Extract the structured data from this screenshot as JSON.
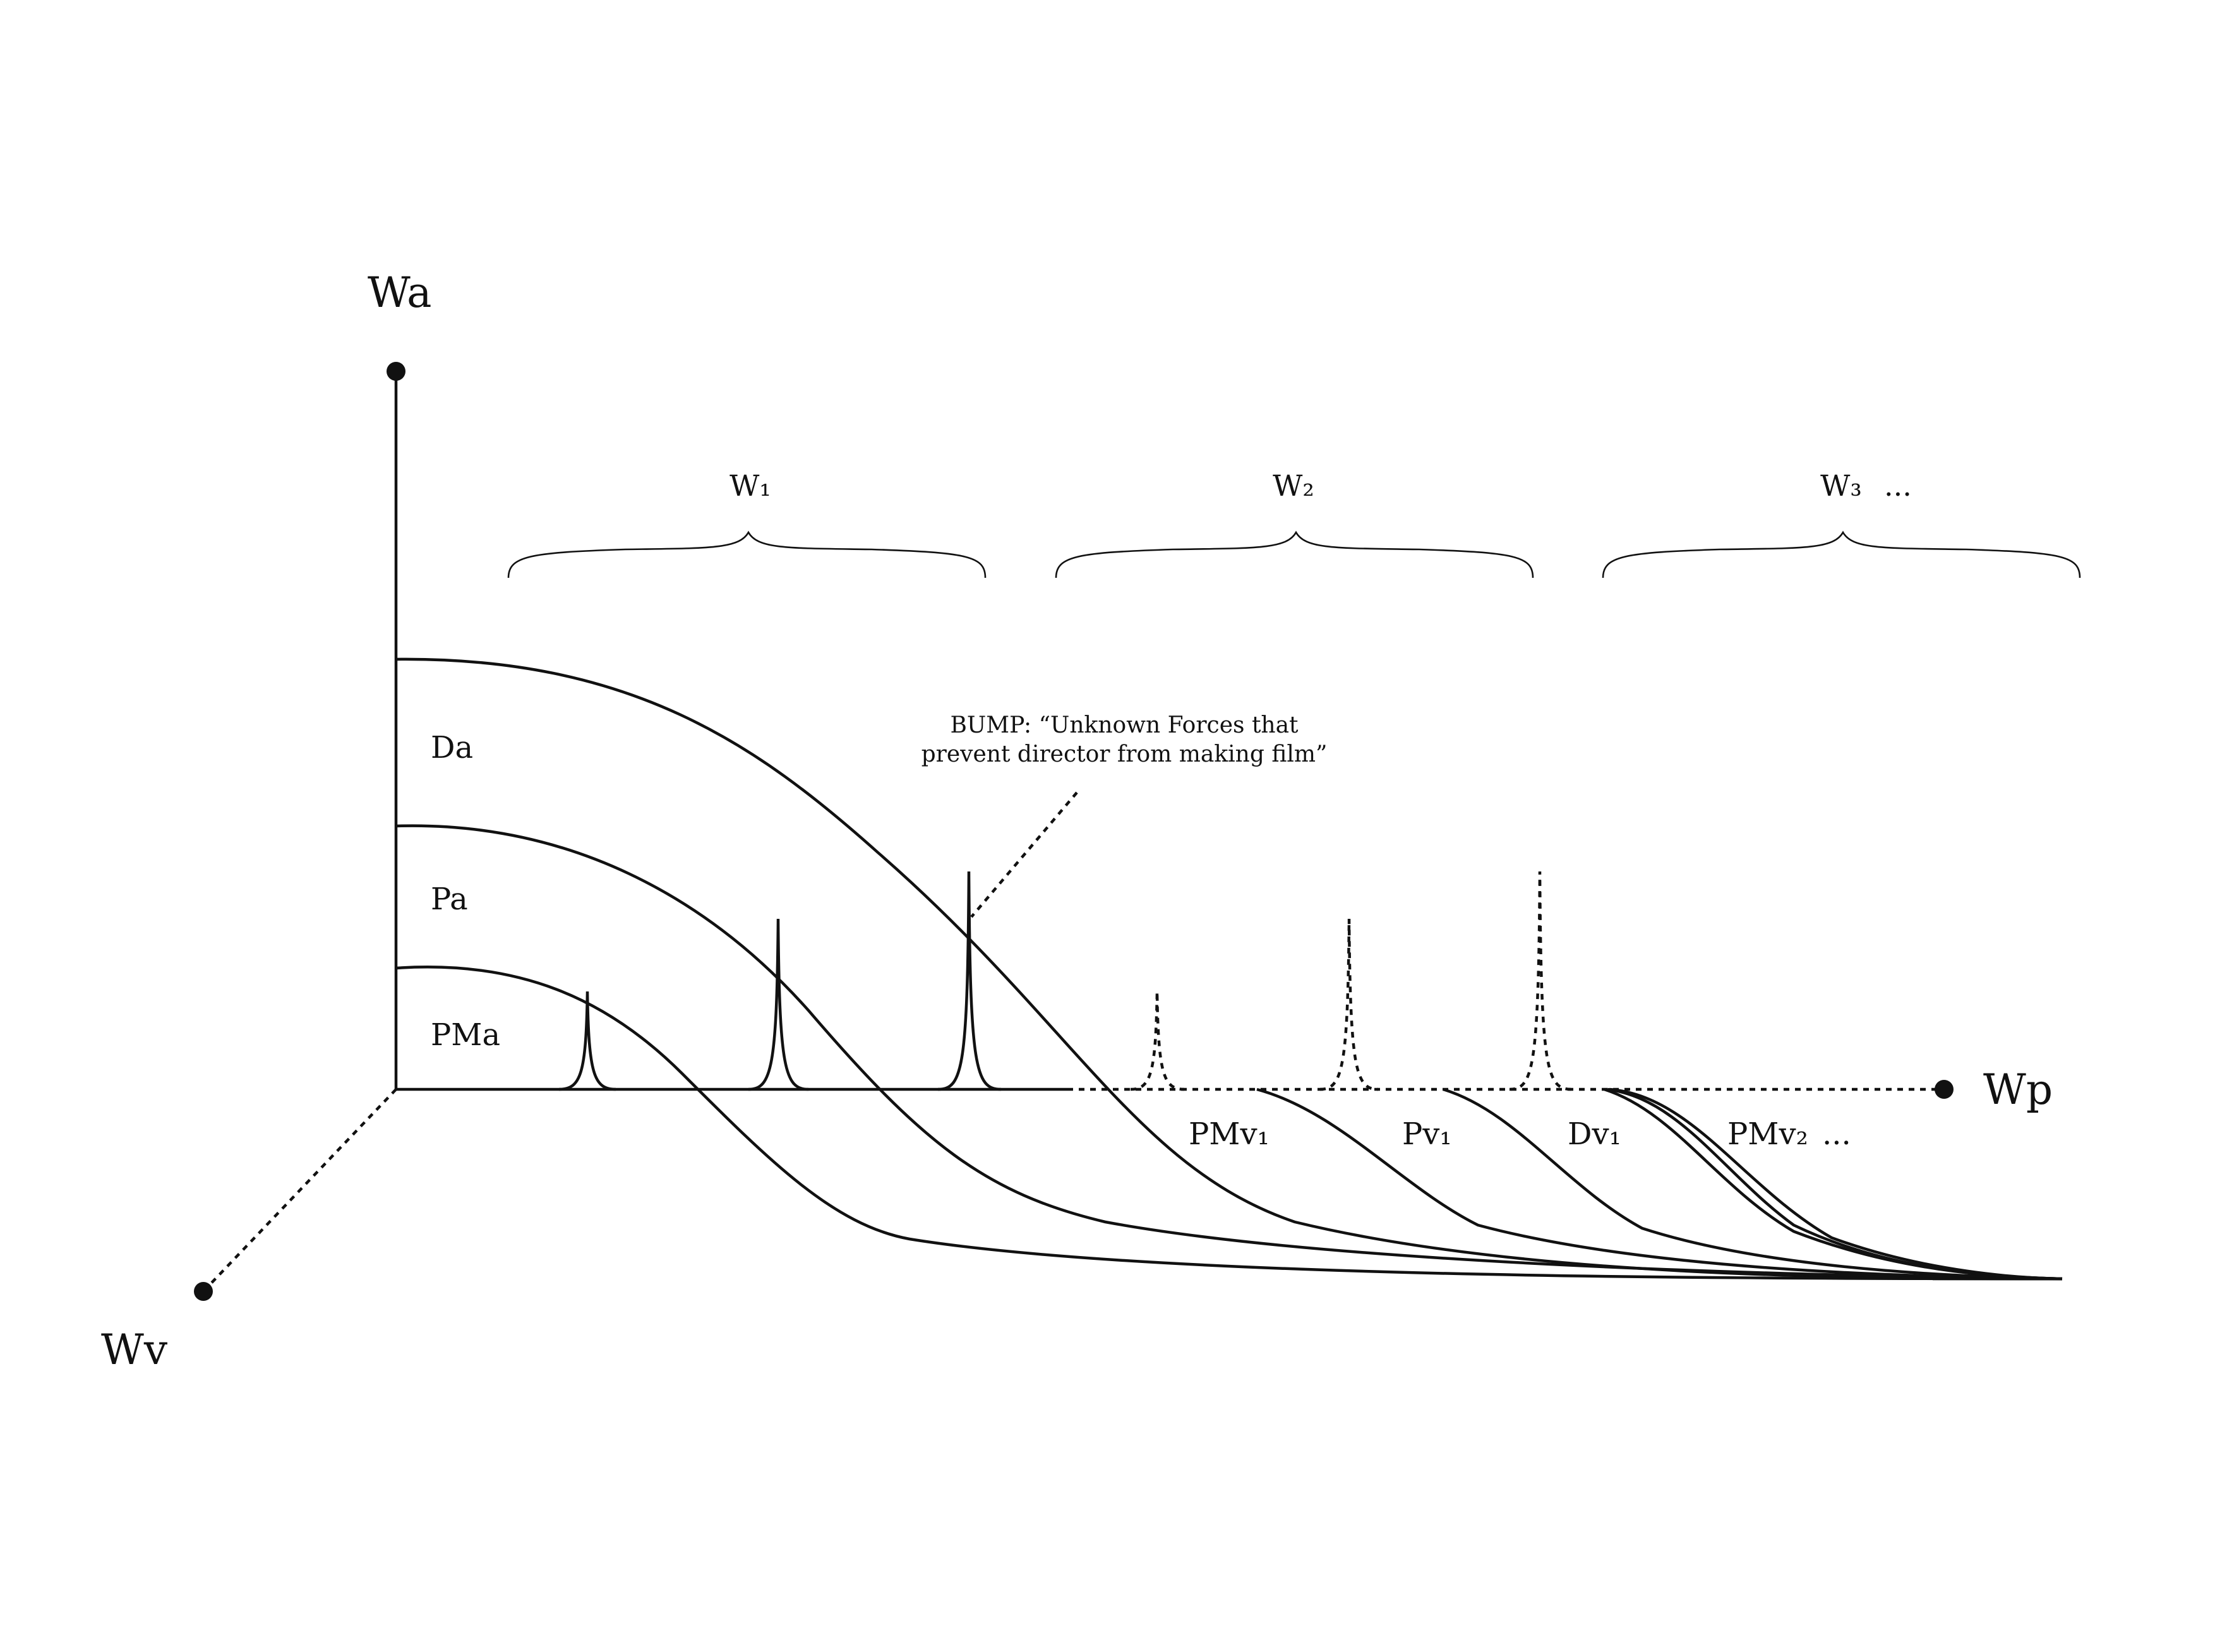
{
  "axes": {
    "wa": "Wa",
    "wp": "Wp",
    "wv": "Wv"
  },
  "regions": {
    "da": "Da",
    "pa": "Pa",
    "pma": "PMa"
  },
  "worlds": {
    "w1": "W₁",
    "w2": "W₂",
    "w3": "W₃",
    "w3_ellipsis": "..."
  },
  "bump": {
    "line1": "BUMP: “Unknown Forces that",
    "line2": "prevent director from making film”"
  },
  "virtual_labels": {
    "pmv1": "PMv₁",
    "pv1": "Pv₁",
    "dv1": "Dv₁",
    "pmv2": "PMv₂",
    "ellipsis": "..."
  }
}
